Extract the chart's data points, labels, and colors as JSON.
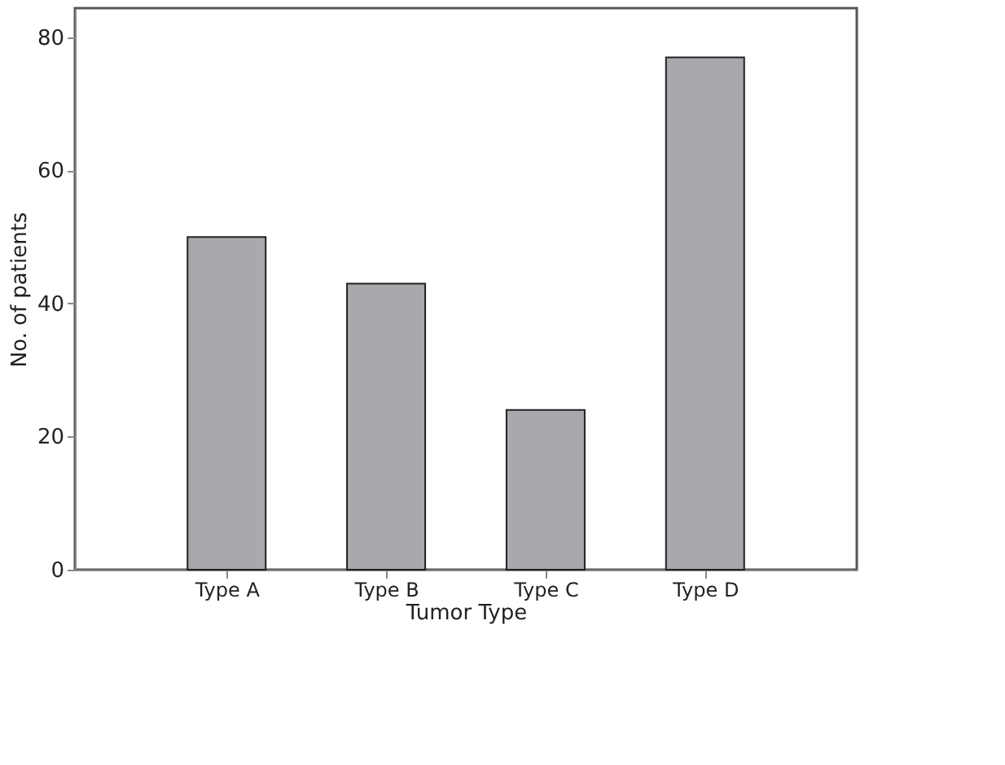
{
  "chart_data": {
    "type": "bar",
    "xlabel": "Tumor Type",
    "ylabel": "No. of patients",
    "categories": [
      "Type A",
      "Type B",
      "Type C",
      "Type D"
    ],
    "values": [
      50,
      43,
      24,
      77
    ],
    "color": "#a8a9ad",
    "ylim": [
      0,
      84.4
    ],
    "yticks": [
      0,
      20,
      40,
      60,
      80
    ],
    "grid": false
  }
}
